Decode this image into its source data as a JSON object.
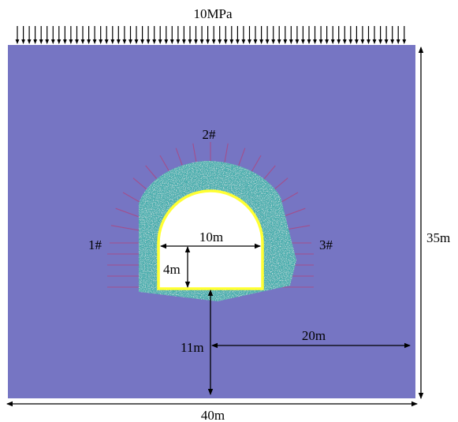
{
  "diagram": {
    "load_label": "10MPa",
    "height_label": "35m",
    "width_label": "40m",
    "tunnel_width_label": "10m",
    "wall_height_label": "4m",
    "depth_label": "11m",
    "offset_label": "20m",
    "bolt_group_labels": [
      "1#",
      "2#",
      "3#"
    ]
  },
  "colors": {
    "rock_mass": "#7675c3",
    "grouted_zone": "#4aaeae",
    "lining": "#ffff33",
    "bolts": "#a24f8c",
    "opening": "#ffffff",
    "lines": "#000000"
  }
}
